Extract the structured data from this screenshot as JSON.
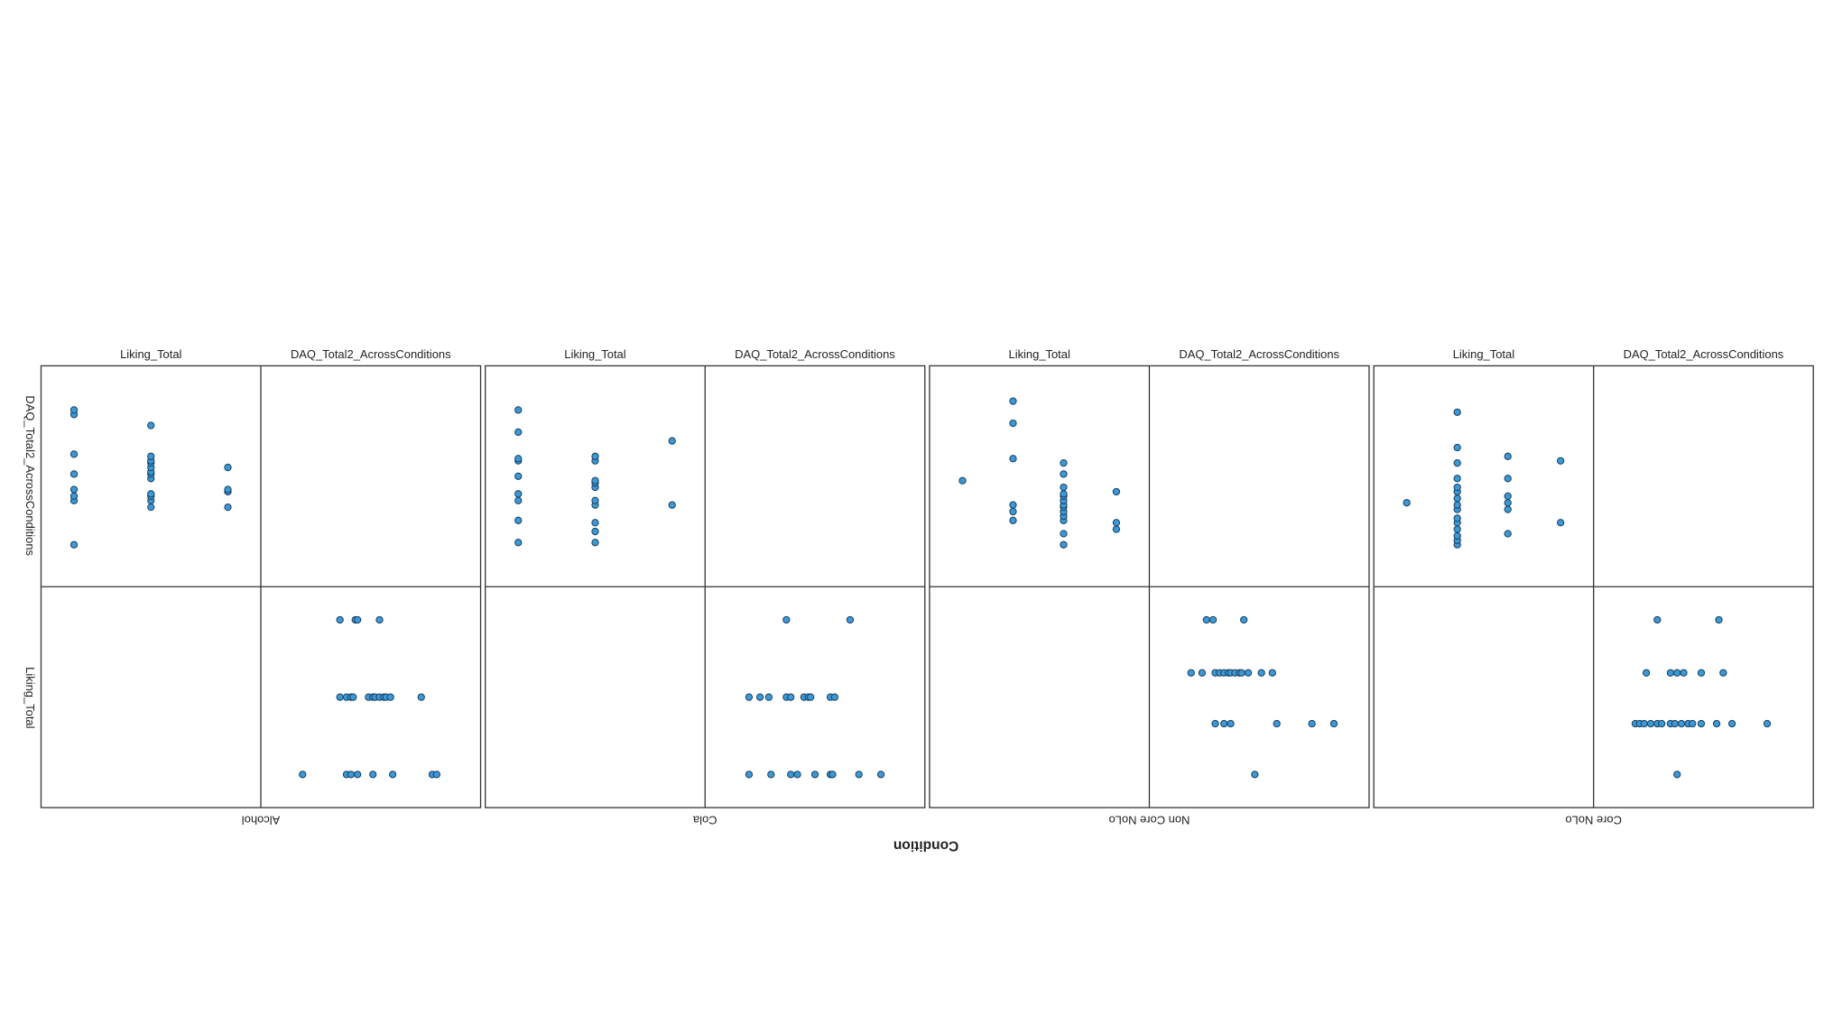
{
  "chart_data": {
    "type": "scatter-matrix",
    "x_label": "Condition",
    "variables": [
      "DAQ_Total2_AcrossConditions",
      "Liking_Total"
    ],
    "liking_lim": [
      0,
      100
    ],
    "daq_lim": [
      0,
      100
    ],
    "color": "#3a9ad9",
    "edge_color": "#1c3f5e",
    "panels": [
      {
        "condition": "Alcohol",
        "liking": [
          85,
          85,
          85,
          85,
          50,
          50,
          50,
          50,
          50,
          50,
          50,
          50,
          50,
          50,
          50,
          50,
          15,
          15,
          15,
          15,
          15,
          15,
          15,
          15
        ],
        "daq": [
          36,
          43,
          44,
          54,
          36,
          39,
          41,
          42,
          49,
          51,
          52,
          54,
          56,
          57,
          59,
          73,
          19,
          39,
          41,
          44,
          51,
          60,
          78,
          80
        ]
      },
      {
        "condition": "Cola",
        "liking": [
          85,
          85,
          50,
          50,
          50,
          50,
          50,
          50,
          50,
          50,
          50,
          50,
          15,
          15,
          15,
          15,
          15,
          15,
          15,
          15,
          15
        ],
        "daq": [
          37,
          66,
          20,
          25,
          29,
          37,
          39,
          45,
          47,
          48,
          57,
          59,
          20,
          30,
          39,
          42,
          50,
          57,
          58,
          70,
          80
        ]
      },
      {
        "condition": "Non Core NoLo",
        "liking": [
          85,
          85,
          85,
          61,
          61,
          61,
          61,
          61,
          61,
          61,
          61,
          61,
          61,
          61,
          61,
          61,
          38,
          38,
          38,
          38,
          38,
          38,
          15
        ],
        "daq": [
          26,
          29,
          43,
          19,
          24,
          30,
          32,
          34,
          36,
          37,
          39,
          41,
          42,
          45,
          51,
          56,
          30,
          34,
          37,
          58,
          74,
          84,
          48
        ]
      },
      {
        "condition": "Core NoLo",
        "liking": [
          85,
          85,
          61,
          61,
          61,
          61,
          61,
          61,
          38,
          38,
          38,
          38,
          38,
          38,
          38,
          38,
          38,
          38,
          38,
          38,
          38,
          38,
          38,
          15
        ],
        "daq": [
          29,
          57,
          24,
          35,
          38,
          41,
          49,
          59,
          19,
          21,
          23,
          26,
          29,
          31,
          35,
          37,
          40,
          43,
          45,
          49,
          56,
          63,
          79,
          38
        ]
      }
    ]
  }
}
